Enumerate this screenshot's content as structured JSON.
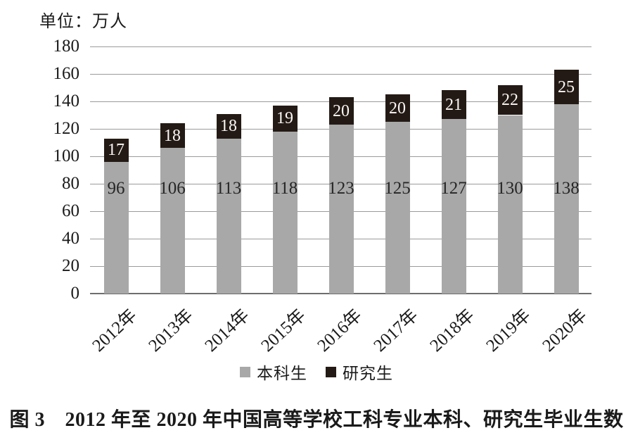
{
  "unit_label": "单位：万人",
  "caption": "图 3　2012 年至 2020 年中国高等学校工科专业本科、研究生毕业生数",
  "colors": {
    "undergrad_bar": "#a8a8a8",
    "grad_bar": "#241a15",
    "gridline": "#9b9b9b",
    "axis_line": "#6e6e6e",
    "grad_label_text": "#faf7f4",
    "undergrad_label_text": "#262626"
  },
  "chart_data": {
    "type": "bar",
    "stacked": true,
    "title": "图 3　2012 年至 2020 年中国高等学校工科专业本科、研究生毕业生数",
    "ylabel": "单位：万人",
    "xlabel": "",
    "categories": [
      "2012年",
      "2013年",
      "2014年",
      "2015年",
      "2016年",
      "2017年",
      "2018年",
      "2019年",
      "2020年"
    ],
    "series": [
      {
        "name": "本科生",
        "color": "#a8a8a8",
        "values": [
          96,
          106,
          113,
          118,
          123,
          125,
          127,
          130,
          138
        ]
      },
      {
        "name": "研究生",
        "color": "#241a15",
        "values": [
          17,
          18,
          18,
          19,
          20,
          20,
          21,
          22,
          25
        ]
      }
    ],
    "ylim": [
      0,
      180
    ],
    "yticks": [
      0,
      20,
      40,
      60,
      80,
      100,
      120,
      140,
      160,
      180
    ],
    "grid": "horizontal",
    "legend_position": "bottom",
    "bar_value_labels": "shown"
  }
}
